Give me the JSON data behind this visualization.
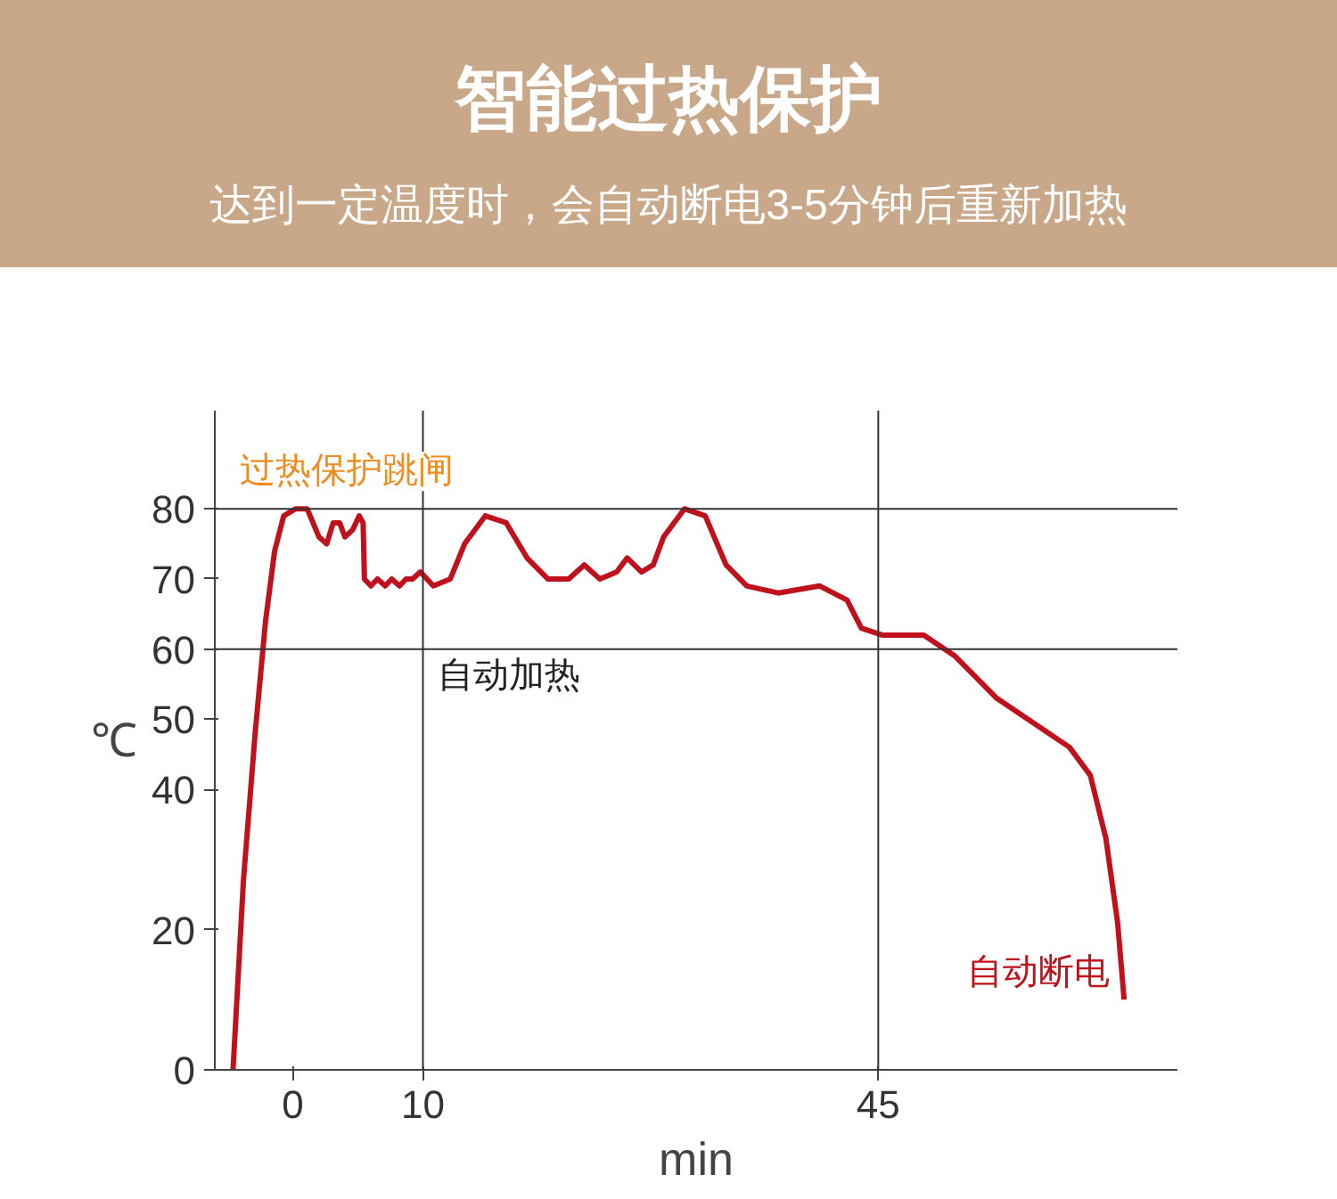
{
  "chart_data": {
    "type": "line",
    "title": "智能过热保护",
    "subtitle": "达到一定温度时，会自动断电3-5分钟后重新加热",
    "xlabel": "min",
    "ylabel": "℃",
    "x": [
      -4.6,
      -3.8,
      -2.9,
      -2.1,
      -1.4,
      -0.7,
      0.2,
      1.1,
      2.0,
      2.6,
      3.1,
      3.6,
      4.0,
      4.6,
      5.1,
      5.4,
      5.5,
      6.0,
      6.5,
      7.1,
      7.6,
      8.2,
      8.7,
      9.2,
      9.8,
      10.8,
      12.1,
      13.2,
      14.8,
      16.4,
      18.0,
      19.6,
      21.2,
      22.4,
      23.6,
      24.9,
      25.7,
      26.8,
      27.7,
      28.5,
      30.1,
      31.7,
      33.3,
      34.9,
      37.3,
      40.5,
      42.6,
      43.7,
      45.3,
      48.5,
      50.9,
      54.1,
      57.3,
      59.7,
      61.3,
      62.5,
      63.4,
      63.9
    ],
    "series": [
      {
        "color": "#c0121c",
        "values": [
          0,
          27,
          48,
          64,
          74,
          79,
          80,
          80,
          76,
          75,
          78,
          78,
          76,
          77,
          79,
          78,
          70,
          69,
          70,
          69,
          70,
          69,
          70,
          70,
          71,
          69,
          70,
          75,
          79,
          78,
          73,
          70,
          70,
          72,
          70,
          71,
          73,
          71,
          72,
          76,
          80,
          79,
          72,
          69,
          68,
          69,
          67,
          63,
          62,
          62,
          59,
          53,
          49,
          46,
          42,
          33,
          21,
          10
        ]
      }
    ],
    "xlim": [
      -6,
      68
    ],
    "xticks": [
      0,
      10,
      45
    ],
    "ylim": [
      0,
      94
    ],
    "yticks": [
      0,
      20,
      40,
      50,
      60,
      70,
      80
    ],
    "grid": false,
    "line_style": "solid",
    "ref_lines": [
      {
        "axis": "y",
        "value": 80
      },
      {
        "axis": "y",
        "value": 60
      },
      {
        "axis": "x",
        "value": 10
      },
      {
        "axis": "x",
        "value": 45
      }
    ],
    "annotations": [
      {
        "text": "过热保护跳闸",
        "x": 0,
        "y": 80
      },
      {
        "text": "自动加热",
        "x": 10,
        "y": 60
      },
      {
        "text": "自动断电",
        "x": 63.9,
        "y": 10
      }
    ]
  }
}
